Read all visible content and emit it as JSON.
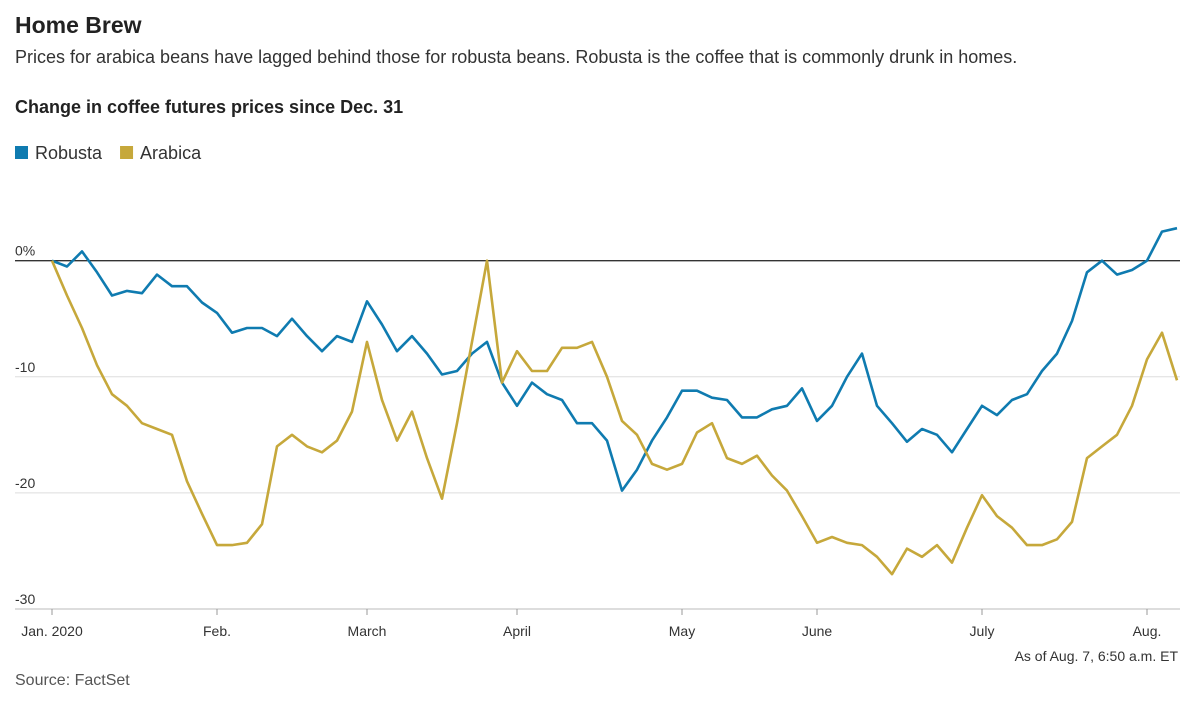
{
  "chart_data": {
    "type": "line",
    "title": "Home Brew",
    "subtitle": "Prices for arabica beans have lagged behind those for robusta beans. Robusta is the coffee that is commonly drunk in homes.",
    "chart_title": "Change in coffee futures prices since Dec. 31",
    "note": "As of Aug. 7, 6:50 a.m. ET",
    "source": "Source: FactSet",
    "categories": [
      "Jan. 2020",
      null,
      null,
      null,
      null,
      null,
      null,
      null,
      null,
      null,
      null,
      "Feb.",
      null,
      null,
      null,
      null,
      null,
      null,
      null,
      null,
      null,
      "March",
      null,
      null,
      null,
      null,
      null,
      null,
      null,
      null,
      null,
      "April",
      null,
      null,
      null,
      null,
      null,
      null,
      null,
      null,
      null,
      null,
      "May",
      null,
      null,
      null,
      null,
      null,
      null,
      null,
      null,
      "June",
      null,
      null,
      null,
      null,
      null,
      null,
      null,
      null,
      null,
      null,
      "July",
      null,
      null,
      null,
      null,
      null,
      null,
      null,
      null,
      null,
      null,
      "Aug.",
      null,
      null
    ],
    "series": [
      {
        "name": "Robusta",
        "color": "#0f7bb0",
        "values": [
          0,
          -0.5,
          0.8,
          -1,
          -3,
          -2.6,
          -2.8,
          -1.2,
          -2.2,
          -2.2,
          -3.6,
          -4.5,
          -6.2,
          -5.8,
          -5.8,
          -6.5,
          -5,
          -6.5,
          -7.8,
          -6.5,
          -7,
          -3.5,
          -5.5,
          -7.8,
          -6.5,
          -8,
          -9.8,
          -9.5,
          -8,
          -7,
          -10.5,
          -12.5,
          -10.5,
          -11.5,
          -12,
          -14,
          -14,
          -15.5,
          -19.8,
          -18,
          -15.5,
          -13.5,
          -11.2,
          -11.2,
          -11.8,
          -12,
          -13.5,
          -13.5,
          -12.8,
          -12.5,
          -11,
          -13.8,
          -12.5,
          -10,
          -8,
          -12.5,
          -14,
          -15.6,
          -14.5,
          -15,
          -16.5,
          -14.5,
          -12.5,
          -13.3,
          -12,
          -11.5,
          -9.5,
          -8,
          -5.2,
          -1,
          0,
          -1.2,
          -0.8,
          0,
          2.5,
          2.8
        ]
      },
      {
        "name": "Arabica",
        "color": "#c6a83b",
        "values": [
          0,
          -3,
          -5.8,
          -9,
          -11.5,
          -12.5,
          -14,
          -14.5,
          -15,
          -19,
          -21.8,
          -24.5,
          -24.5,
          -24.3,
          -22.7,
          -16,
          -15,
          -16,
          -16.5,
          -15.5,
          -13,
          -7,
          -12,
          -15.5,
          -13,
          -17,
          -20.5,
          -14,
          -7,
          0,
          -10.5,
          -7.8,
          -9.5,
          -9.5,
          -7.5,
          -7.5,
          -7,
          -10,
          -13.8,
          -15,
          -17.5,
          -18,
          -17.5,
          -14.8,
          -14,
          -17,
          -17.5,
          -16.8,
          -18.5,
          -19.8,
          -22,
          -24.3,
          -23.8,
          -24.3,
          -24.5,
          -25.5,
          -27,
          -24.8,
          -25.5,
          -24.5,
          -26,
          -23,
          -20.2,
          -22,
          -23,
          -24.5,
          -24.5,
          -24,
          -22.5,
          -17,
          -16,
          -15,
          -12.5,
          -8.5,
          -6.2,
          -10.3
        ]
      }
    ],
    "ylim": [
      -30,
      6
    ],
    "yticks": [
      {
        "value": 0,
        "label": "0%"
      },
      -10,
      -20,
      -30
    ],
    "grid": true,
    "legend": "top-left"
  }
}
